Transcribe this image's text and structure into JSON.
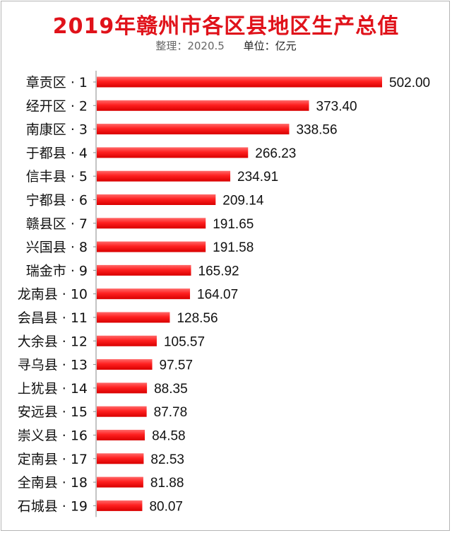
{
  "header": {
    "title": "2019年赣州市各区县地区生产总值",
    "note": "整理：2020.5",
    "unit": "单位：亿元"
  },
  "colors": {
    "bar": "#ff2020",
    "bar_edge": "#d80000",
    "title": "#e0121a",
    "axis": "#888888"
  },
  "chart_data": {
    "type": "bar",
    "orientation": "horizontal",
    "title": "2019年赣州市各区县地区生产总值",
    "unit": "亿元",
    "categories": [
      "章贡区 · 1",
      "经开区 · 2",
      "南康区 · 3",
      "于都县 · 4",
      "信丰县 · 5",
      "宁都县 · 6",
      "赣县区 · 7",
      "兴国县 · 8",
      "瑞金市 · 9",
      "龙南县 · 10",
      "会昌县 · 11",
      "大余县 · 12",
      "寻乌县 · 13",
      "上犹县 · 14",
      "安远县 · 15",
      "崇义县 · 16",
      "定南县 · 17",
      "全南县 · 18",
      "石城县 · 19"
    ],
    "values": [
      502.0,
      373.4,
      338.56,
      266.23,
      234.91,
      209.14,
      191.65,
      191.58,
      165.92,
      164.07,
      128.56,
      105.57,
      97.57,
      88.35,
      87.78,
      84.58,
      82.53,
      81.88,
      80.07
    ],
    "value_labels": [
      "502.00",
      "373.40",
      "338.56",
      "266.23",
      "234.91",
      "209.14",
      "191.65",
      "191.58",
      "165.92",
      "164.07",
      "128.56",
      "105.57",
      "97.57",
      "88.35",
      "87.78",
      "84.58",
      "82.53",
      "81.88",
      "80.07"
    ],
    "xlim": [
      0,
      502
    ],
    "grid": false,
    "legend": "none"
  }
}
